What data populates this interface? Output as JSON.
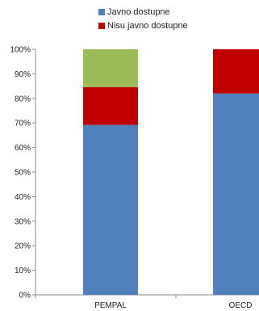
{
  "chart_data": {
    "type": "bar",
    "stacked": true,
    "categories": [
      "PEMPAL",
      "OECD"
    ],
    "series": [
      {
        "name": "Javno dostupne",
        "color": "#4f81bd",
        "values": [
          69.2,
          82.0
        ]
      },
      {
        "name": "Nisu javno dostupne",
        "color": "#c00000",
        "values": [
          15.4,
          18.0
        ]
      },
      {
        "color": "#9bbb59",
        "values": [
          15.4,
          0
        ]
      }
    ],
    "ylim": [
      0,
      100
    ],
    "yticks": [
      "0%",
      "10%",
      "20%",
      "30%",
      "40%",
      "50%",
      "60%",
      "70%",
      "80%",
      "90%",
      "100%"
    ],
    "grid": false,
    "legend_position": "top"
  }
}
